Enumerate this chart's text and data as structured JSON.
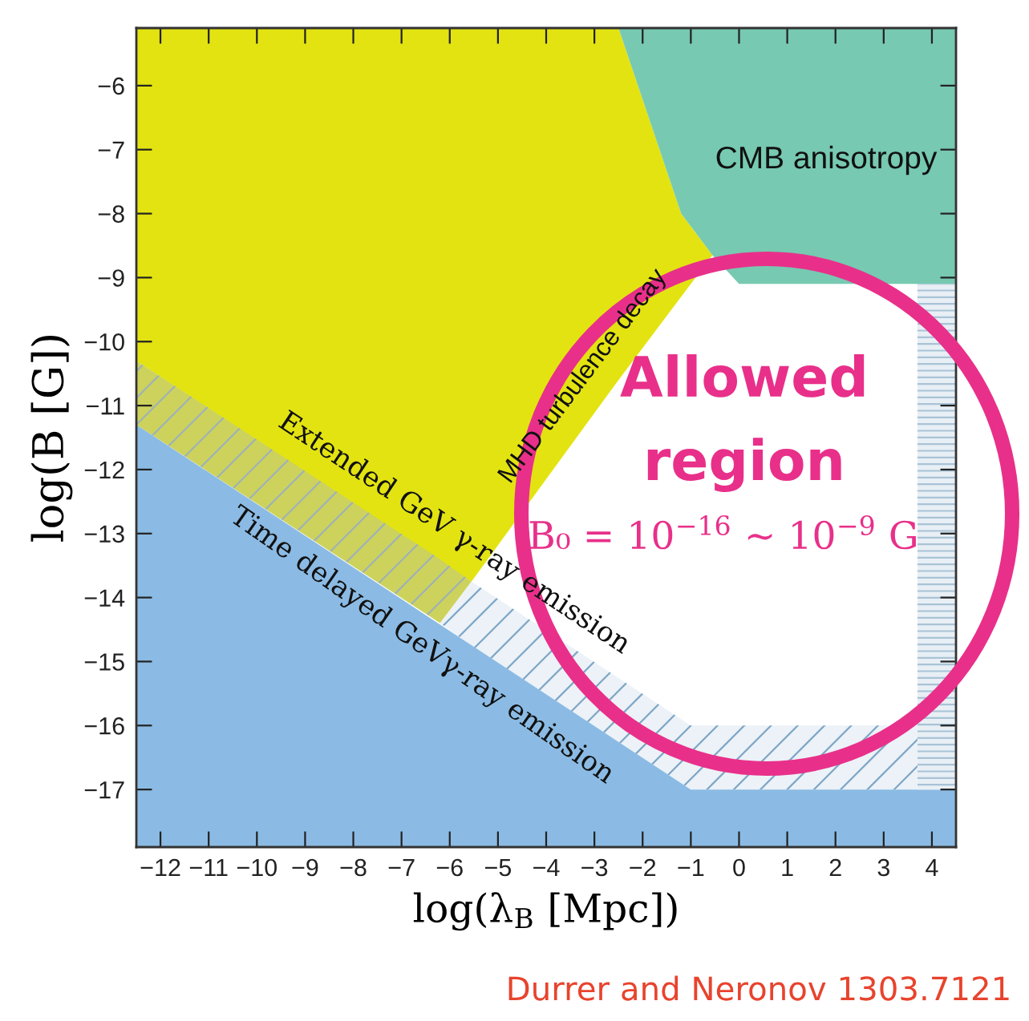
{
  "chart_data": {
    "type": "area",
    "xlabel": "log(λ$_{B}$ [Mpc])",
    "ylabel": "log(B [G])",
    "xlim": [
      -12.5,
      4.5
    ],
    "ylim": [
      -17.9,
      -5.1
    ],
    "xticks": [
      -12,
      -11,
      -10,
      -9,
      -8,
      -7,
      -6,
      -5,
      -4,
      -3,
      -2,
      -1,
      0,
      1,
      2,
      3,
      4
    ],
    "yticks": [
      -6,
      -7,
      -8,
      -9,
      -10,
      -11,
      -12,
      -13,
      -14,
      -15,
      -16,
      -17
    ],
    "series": [
      {
        "color": "#e3e312",
        "x": [
          -12.5,
          -5.55,
          -2.5,
          -1.2,
          -0.55
        ],
        "values": [
          null,
          null,
          null,
          null,
          null
        ],
        "lower": [
          -10.3,
          -13.75,
          -10.6,
          -9.3,
          -8.65
        ],
        "upper": [
          -5.1,
          -5.1,
          -5.1,
          -8.0,
          -8.65
        ]
      },
      {
        "color": "#77c9b1",
        "x": [
          -2.5,
          -1.2,
          -0.55,
          0,
          4.5
        ],
        "values": [
          null,
          null,
          null,
          null,
          null
        ],
        "lower": [
          -5.1,
          -8.0,
          -8.65,
          -9.1,
          -9.1
        ],
        "upper": [
          -5.1,
          -5.1,
          -5.1,
          -5.1,
          -5.1
        ]
      },
      {
        "color": "#cdd25c",
        "x": [
          -12.5,
          -6.2,
          -5.55
        ],
        "values": [
          null,
          null,
          null
        ],
        "lower": [
          -11.3,
          -14.4,
          -13.75
        ],
        "upper": [
          -10.3,
          -13.4,
          -13.75
        ]
      },
      {
        "color": "#ecf2f7",
        "x": [
          -6.2,
          -5.55,
          -1,
          3.7
        ],
        "values": [
          null,
          null,
          null,
          null
        ],
        "lower": [
          -14.4,
          -14.75,
          -17,
          -17
        ],
        "upper": [
          -14.4,
          -13.75,
          -16,
          -16
        ]
      },
      {
        "color": "#8bbbe4",
        "x": [
          -12.5,
          -1,
          4.5
        ],
        "values": [
          null,
          null,
          null
        ],
        "lower": [
          -17.9,
          -17.9,
          -17.9
        ],
        "upper": [
          -11.3,
          -17,
          -17
        ]
      },
      {
        "color": "#e8eff5",
        "x": [
          3.7,
          4.5
        ],
        "values": [
          null,
          null
        ],
        "lower": [
          -17,
          -17
        ],
        "upper": [
          -9.1,
          -9.1
        ]
      }
    ],
    "annotations": [
      "CMB anisotropy",
      "MHD turbulence decay",
      "Extended GeV γ-ray emission",
      "Time delayed GeVγ-ray emission",
      "Allowed\nregion",
      "B₀ = 10$^{−16}$ ∼ 10$^{−9}$ G",
      "Durrer and Neronov 1303.7121"
    ]
  }
}
